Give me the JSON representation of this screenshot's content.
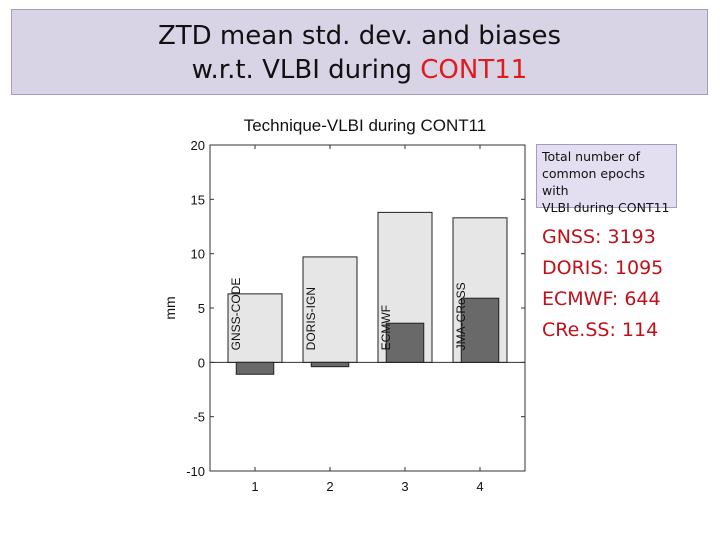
{
  "slide": {
    "title_line1": "ZTD mean std. dev. and biases",
    "title_line2_prefix": "w.r.t. VLBI during ",
    "title_line2_accent": "CONT11",
    "accent_color": "#e01b1b"
  },
  "info_box": {
    "line1": "Total number of",
    "line2": "common epochs with",
    "line3": "VLBI during CONT11"
  },
  "counts": [
    "GNSS: 3193",
    "DORIS: 1095",
    "ECMWF: 644",
    "CRe.SS: 114"
  ],
  "chart_data": {
    "type": "bar",
    "title": "Technique-VLBI during CONT11",
    "xlabel": "",
    "ylabel": "mm",
    "ylim": [
      -10,
      20
    ],
    "yticks": [
      -10,
      -5,
      0,
      5,
      10,
      15,
      20
    ],
    "xticks": [
      1,
      2,
      3,
      4
    ],
    "x": [
      1,
      2,
      3,
      4
    ],
    "bar_labels": [
      "GNSS-CODE",
      "DORIS-IGN",
      "ECMWF",
      "JMA-CReSS"
    ],
    "grid": false,
    "series": [
      {
        "values": [
          6.3,
          9.7,
          13.8,
          13.3
        ],
        "color": "#e6e6e6"
      },
      {
        "values": [
          -1.1,
          -0.4,
          3.6,
          5.9
        ],
        "color": "#696969"
      }
    ]
  }
}
